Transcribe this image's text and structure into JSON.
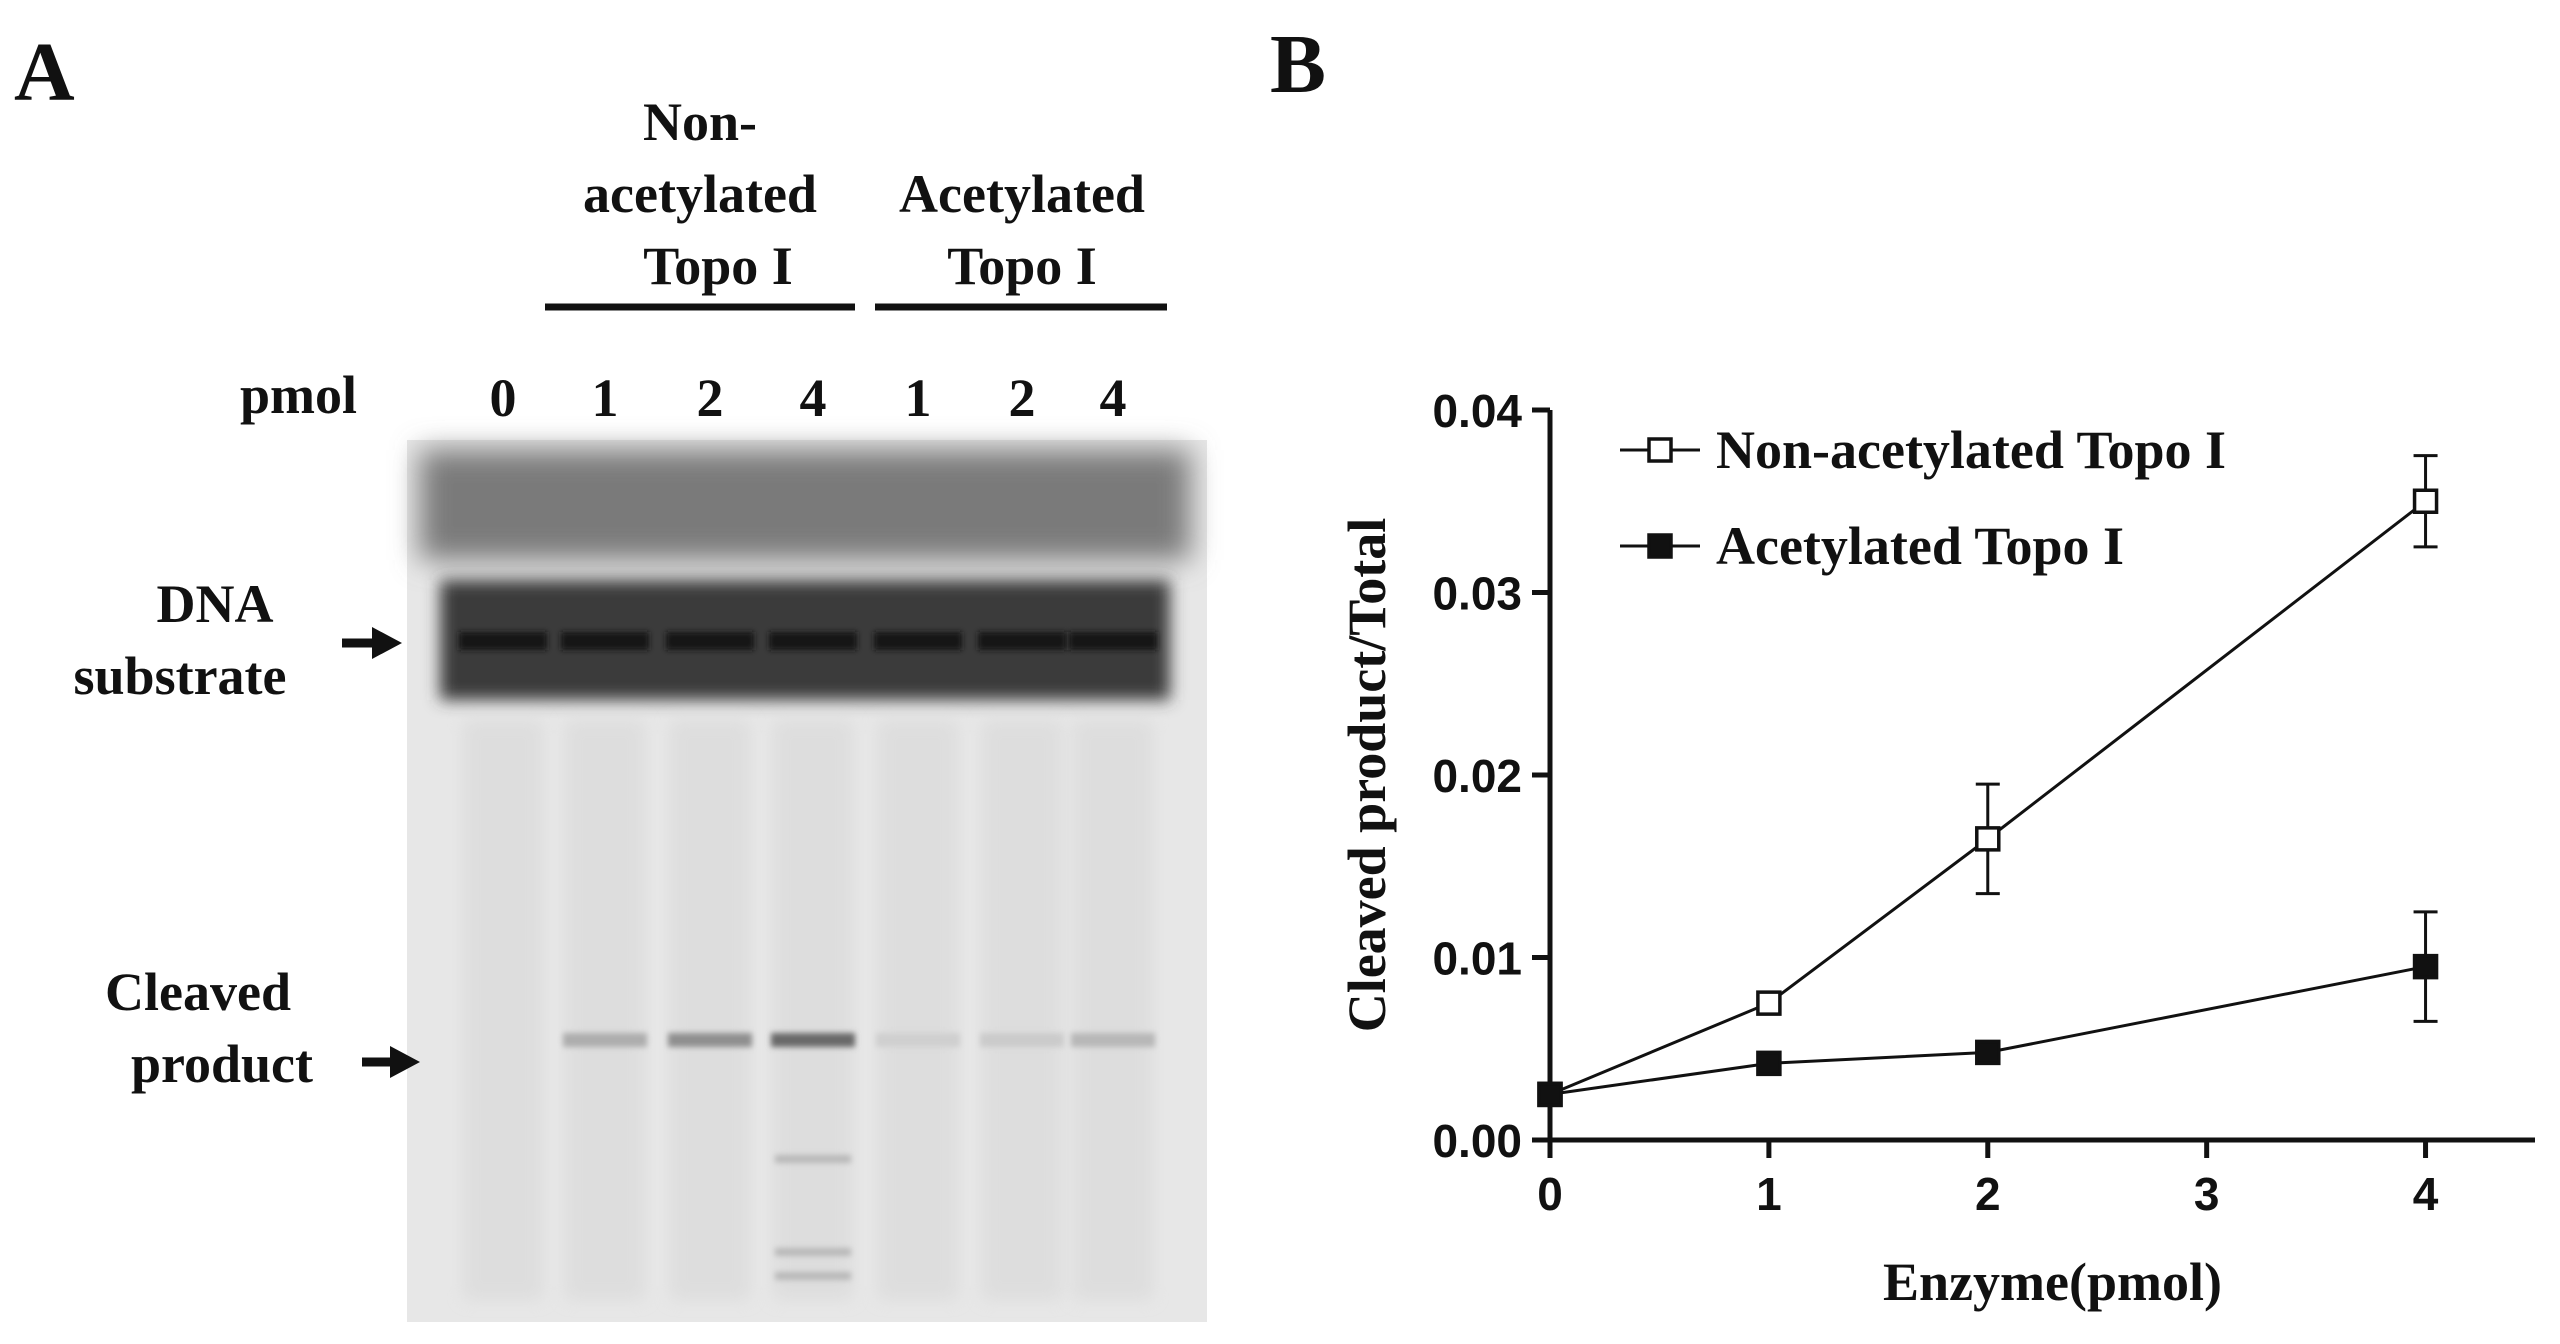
{
  "panel_a": {
    "letter": "A",
    "group_non_acetylated": [
      "Non-",
      "acetylated",
      "Topo I"
    ],
    "group_acetylated": [
      "Acetylated",
      "Topo I"
    ],
    "pmol_label": "pmol",
    "lanes": [
      {
        "label": "0",
        "cleaved_intensity": 0
      },
      {
        "label": "1",
        "cleaved_intensity": 0.35
      },
      {
        "label": "2",
        "cleaved_intensity": 0.55
      },
      {
        "label": "4",
        "cleaved_intensity": 0.8
      },
      {
        "label": "1",
        "cleaved_intensity": 0.12
      },
      {
        "label": "2",
        "cleaved_intensity": 0.15
      },
      {
        "label": "4",
        "cleaved_intensity": 0.28
      }
    ],
    "dna_label": [
      "DNA",
      "substrate"
    ],
    "cleaved_label": [
      "Cleaved",
      "product"
    ]
  },
  "panel_b": {
    "letter": "B"
  },
  "chart_data": {
    "type": "line",
    "title": "",
    "xlabel": "Enzyme(pmol)",
    "ylabel": "Cleaved product/Total",
    "xlim": [
      0,
      4.5
    ],
    "ylim": [
      0,
      0.04
    ],
    "xticks": [
      0,
      1,
      2,
      3,
      4
    ],
    "yticks": [
      0,
      0.01,
      0.02,
      0.03,
      0.04
    ],
    "ytick_labels": [
      "0.00",
      "0.01",
      "0.02",
      "0.03",
      "0.04"
    ],
    "grid": false,
    "legend_position": "top-left",
    "series": [
      {
        "name": "Non-acetylated Topo I",
        "marker": "open-square",
        "x": [
          0,
          1,
          2,
          4
        ],
        "y": [
          0.0025,
          0.0075,
          0.0165,
          0.035
        ],
        "error": [
          0,
          0,
          0.003,
          0.0025
        ]
      },
      {
        "name": "Acetylated Topo I",
        "marker": "filled-square",
        "x": [
          0,
          1,
          2,
          4
        ],
        "y": [
          0.0025,
          0.0042,
          0.0048,
          0.0095
        ],
        "error": [
          0,
          0,
          0,
          0.003
        ]
      }
    ]
  }
}
